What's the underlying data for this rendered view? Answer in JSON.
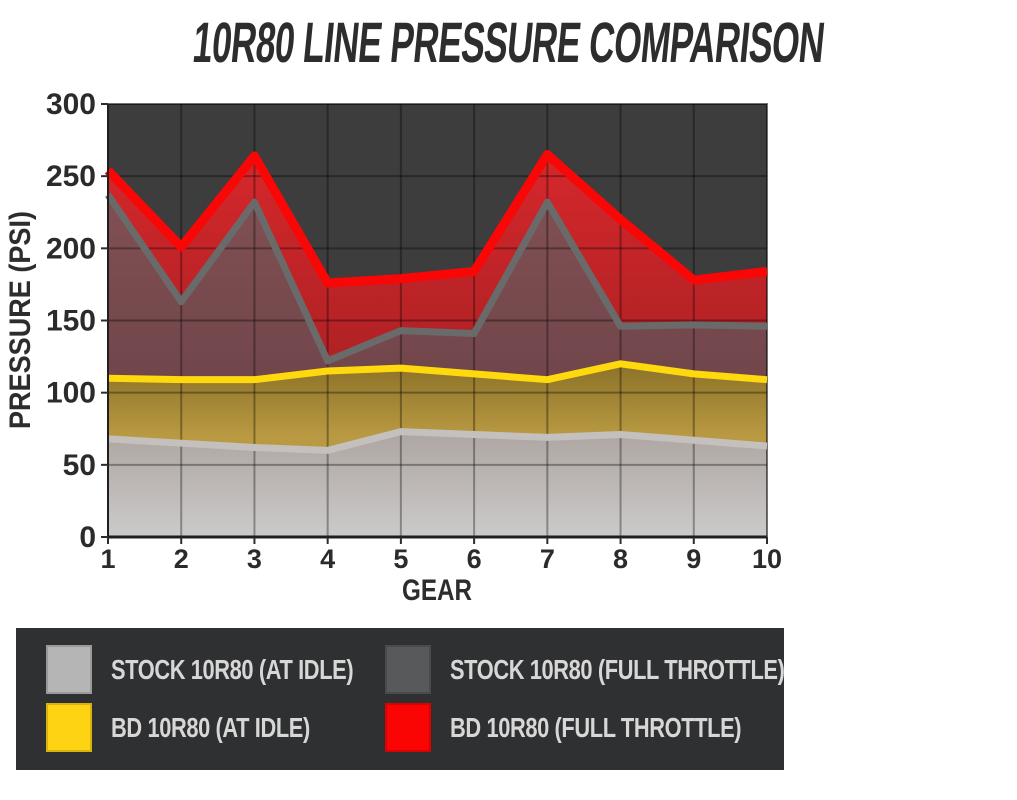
{
  "title": "10R80 LINE PRESSURE COMPARISON",
  "chart_data": {
    "type": "area",
    "title": "10R80 LINE PRESSURE COMPARISON",
    "x_label": "GEAR",
    "y_label": "PRESSURE (PSI)",
    "categories": [
      "1",
      "2",
      "3",
      "4",
      "5",
      "6",
      "7",
      "8",
      "9",
      "10"
    ],
    "ylim": [
      0,
      300
    ],
    "yticks": [
      0,
      50,
      100,
      150,
      200,
      250,
      300
    ],
    "grid": true,
    "background": "#3d3d3d",
    "legend_position": "bottom",
    "series": [
      {
        "key": "stock_idle",
        "name": "STOCK 10R80 (AT IDLE)",
        "color": "#b5b5b5",
        "line_color": "#c3c0be",
        "values": [
          68,
          65,
          62,
          60,
          73,
          71,
          69,
          71,
          67,
          63
        ]
      },
      {
        "key": "bd_idle",
        "name": "BD 10R80 (AT IDLE)",
        "color": "#fdd313",
        "line_color": "#fed90e",
        "values": [
          110,
          109,
          109,
          115,
          117,
          113,
          109,
          120,
          113,
          109
        ]
      },
      {
        "key": "stock_full",
        "name": "STOCK 10R80 (FULL THROTTLE)",
        "color": "#58595b",
        "line_color": "#6a6a6a",
        "values": [
          237,
          163,
          232,
          122,
          143,
          141,
          232,
          146,
          147,
          146
        ]
      },
      {
        "key": "bd_full",
        "name": "BD 10R80 (FULL THROTTLE)",
        "color": "#fb0404",
        "line_color": "#f90606",
        "values": [
          254,
          201,
          264,
          176,
          179,
          184,
          265,
          220,
          178,
          184
        ]
      }
    ]
  },
  "legend": {
    "items": [
      {
        "label": "STOCK 10R80 (AT IDLE)",
        "color": "#b5b5b5"
      },
      {
        "label": "STOCK 10R80 (FULL THROTTLE)",
        "color": "#58595b"
      },
      {
        "label": "BD 10R80 (AT IDLE)",
        "color": "#fdd313"
      },
      {
        "label": "BD 10R80 (FULL THROTTLE)",
        "color": "#fb0404"
      }
    ]
  }
}
